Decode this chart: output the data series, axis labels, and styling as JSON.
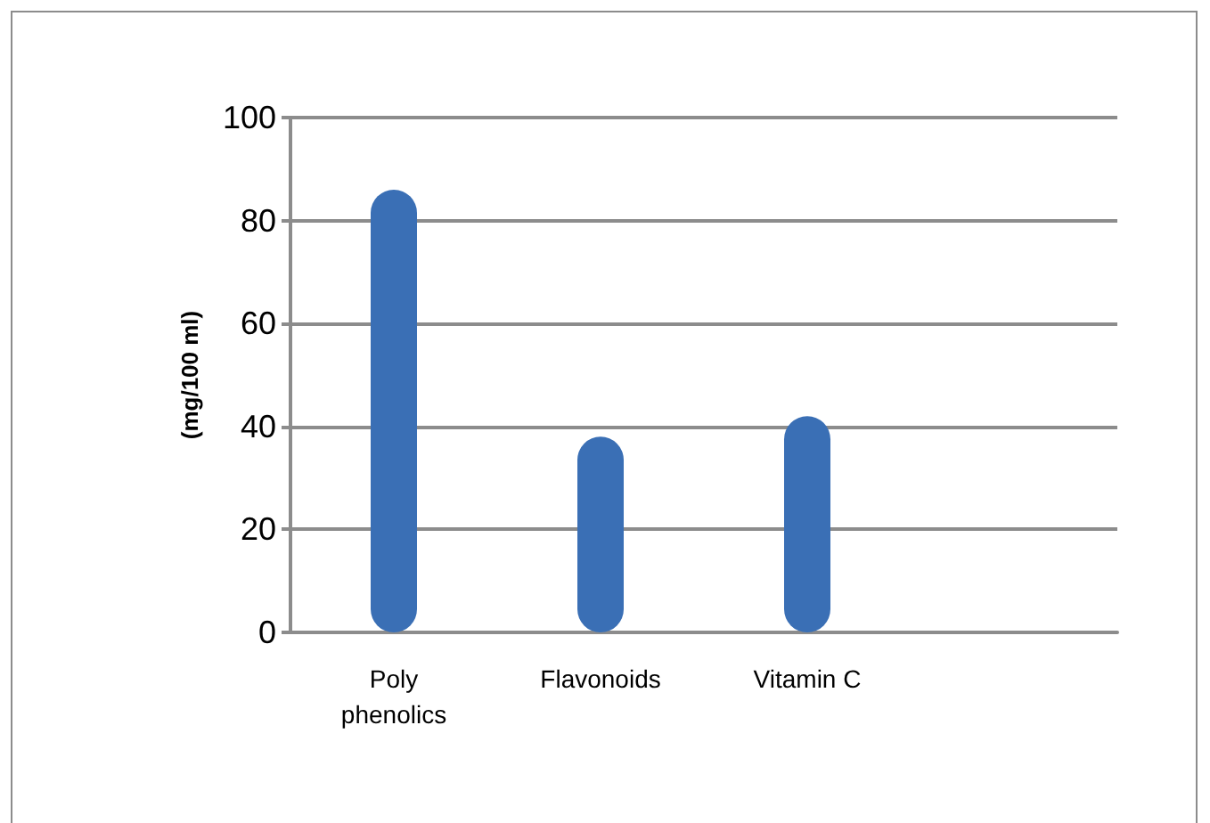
{
  "chart_data": {
    "type": "bar",
    "ylabel": "(mg/100 ml)",
    "categories": [
      "Poly\nphenolics",
      "Flavonoids",
      "Vitamin C",
      null
    ],
    "values": [
      86,
      38,
      42,
      null
    ],
    "color": "#3a6fb5",
    "ylim": [
      0,
      100
    ],
    "yticks": [
      0,
      20,
      40,
      60,
      80,
      100
    ],
    "grid": "y"
  }
}
